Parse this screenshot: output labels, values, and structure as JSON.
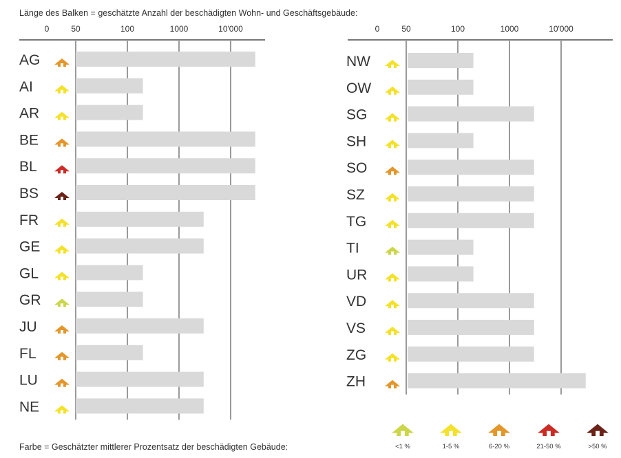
{
  "header_text": "Länge des Balken = geschätzte Anzahl der beschädigten Wohn- und Geschäftsgebäude:",
  "footer_text": "Farbe = Geschätzter mittlerer Prozentsatz der beschädigten Gebäude:",
  "colors": {
    "bar": "#d9d9d9",
    "grid": "#9a9a9a",
    "class_lt1": "#cbd64a",
    "class_1_5": "#f4e12c",
    "class_6_20": "#e3962a",
    "class_21_50": "#cc2a25",
    "class_gt50": "#6b2319"
  },
  "chart_data": [
    {
      "type": "bar",
      "orientation": "horizontal",
      "scale": "log",
      "axis_ticks": [
        "0",
        "50",
        "100",
        "1000",
        "10'000"
      ],
      "categories": [
        "AG",
        "AI",
        "AR",
        "BE",
        "BL",
        "BS",
        "FR",
        "GE",
        "GL",
        "GR",
        "JU",
        "FL",
        "LU",
        "NE"
      ],
      "values": [
        30000,
        200,
        200,
        30000,
        30000,
        30000,
        3000,
        3000,
        200,
        200,
        3000,
        200,
        3000,
        3000
      ],
      "damage_class": [
        "6-20 %",
        "1-5 %",
        "1-5 %",
        "6-20 %",
        "21-50 %",
        ">50 %",
        "1-5 %",
        "1-5 %",
        "1-5 %",
        "<1 %",
        "6-20 %",
        "6-20 %",
        "6-20 %",
        "1-5 %"
      ]
    },
    {
      "type": "bar",
      "orientation": "horizontal",
      "scale": "log",
      "axis_ticks": [
        "0",
        "50",
        "100",
        "1000",
        "10'000"
      ],
      "categories": [
        "NW",
        "OW",
        "SG",
        "SH",
        "SO",
        "SZ",
        "TG",
        "TI",
        "UR",
        "VD",
        "VS",
        "ZG",
        "ZH"
      ],
      "values": [
        200,
        200,
        3000,
        200,
        3000,
        3000,
        3000,
        200,
        200,
        3000,
        3000,
        3000,
        30000
      ],
      "damage_class": [
        "1-5 %",
        "1-5 %",
        "1-5 %",
        "1-5 %",
        "6-20 %",
        "1-5 %",
        "1-5 %",
        "<1 %",
        "1-5 %",
        "1-5 %",
        "1-5 %",
        "1-5 %",
        "6-20 %"
      ]
    }
  ],
  "legend": [
    {
      "label": "<1 %",
      "color": "#cbd64a"
    },
    {
      "label": "1-5 %",
      "color": "#f4e12c"
    },
    {
      "label": "6-20 %",
      "color": "#e3962a"
    },
    {
      "label": "21-50 %",
      "color": "#cc2a25"
    },
    {
      "label": ">50 %",
      "color": "#6b2319"
    }
  ]
}
